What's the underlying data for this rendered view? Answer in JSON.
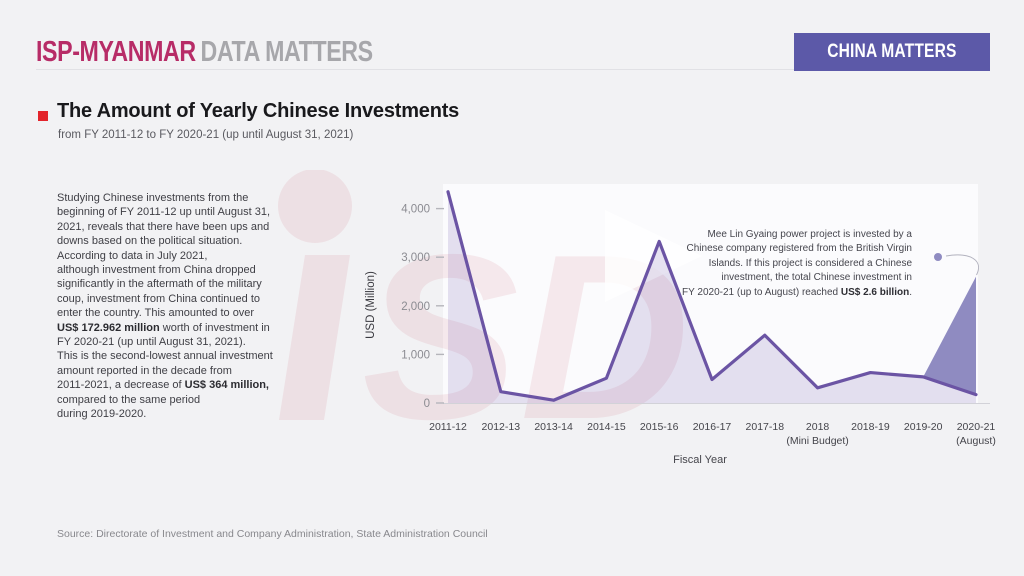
{
  "header": {
    "logo_primary": "ISP-MYANMAR",
    "logo_secondary": "DATA MATTERS",
    "badge": "CHINA MATTERS",
    "brand_color": "#b72c67",
    "badge_color": "#5c59a8"
  },
  "title_block": {
    "bullet_color": "#e3242b",
    "title": "The Amount of Yearly Chinese Investments",
    "subtitle": "from FY 2011-12 to FY 2020-21 (up until August 31, 2021)"
  },
  "body_paragraph": {
    "lines": [
      [
        {
          "t": "Studying Chinese investments from the"
        }
      ],
      [
        {
          "t": "beginning of FY 2011-12 up until August 31,"
        }
      ],
      [
        {
          "t": "2021, reveals that there have been ups and"
        }
      ],
      [
        {
          "t": "downs based on the political situation."
        }
      ],
      [
        {
          "t": "According to data in July 2021,"
        }
      ],
      [
        {
          "t": "although investment from China dropped"
        }
      ],
      [
        {
          "t": "significantly in the aftermath of the military"
        }
      ],
      [
        {
          "t": "coup, investment from China continued to"
        }
      ],
      [
        {
          "t": "enter the country. This amounted to over"
        }
      ],
      [
        {
          "t": "US$ 172.962 million",
          "b": true
        },
        {
          "t": " worth of investment in"
        }
      ],
      [
        {
          "t": "FY 2020-21 (up until August 31, 2021)."
        }
      ],
      [
        {
          "t": "This is the second-lowest annual investment"
        }
      ],
      [
        {
          "t": "amount reported in the decade from"
        }
      ],
      [
        {
          "t": "2011-2021, a decrease of "
        },
        {
          "t": "US$ 364 million,",
          "b": true
        }
      ],
      [
        {
          "t": "compared to the same period"
        }
      ],
      [
        {
          "t": "during 2019-2020."
        }
      ]
    ]
  },
  "chart_data": {
    "type": "area",
    "title": "",
    "xlabel": "Fiscal Year",
    "ylabel": "USD (Million)",
    "categories": [
      [
        "2011-12"
      ],
      [
        "2012-13"
      ],
      [
        "2013-14"
      ],
      [
        "2014-15"
      ],
      [
        "2015-16"
      ],
      [
        "2016-17"
      ],
      [
        "2017-18"
      ],
      [
        "2018",
        "(Mini Budget)"
      ],
      [
        "2018-19"
      ],
      [
        "2019-20"
      ],
      [
        "2020-21",
        "(August)"
      ]
    ],
    "values": [
      4346,
      232,
      57,
      511,
      3324,
      483,
      1395,
      312,
      626,
      537,
      173
    ],
    "ylim": [
      0,
      4500
    ],
    "y_ticks": [
      0,
      1000,
      2000,
      3000,
      4000
    ],
    "y_tick_labels": [
      "0",
      "1,000",
      "2,000",
      "3,000",
      "4,000"
    ],
    "grid": false,
    "legend": "none",
    "colors": {
      "line": "#6b54a4",
      "area": "rgba(105,82,165,0.16)",
      "highlight": "#8f8bc1",
      "axis": "#d2d2d8",
      "tick": "#b5b5bb",
      "tick_text": "#8b8b91",
      "label_text": "#45454b",
      "axis_title": "#3a3a40"
    },
    "annotation": {
      "lines": [
        [
          {
            "t": "Mee Lin Gyaing power project is invested by a"
          }
        ],
        [
          {
            "t": "Chinese company registered from the British Virgin"
          }
        ],
        [
          {
            "t": "Islands. If this project is considered a Chinese"
          }
        ],
        [
          {
            "t": "investment, the total Chinese investment in"
          }
        ],
        [
          {
            "t": "FY 2020-21 (up to August) reached "
          },
          {
            "t": "US$ 2.6 billion",
            "b": true
          },
          {
            "t": "."
          }
        ]
      ],
      "reached_total_musd": 2600,
      "marker_color": "#8f8bc1"
    }
  },
  "watermark": {
    "text": "iSP",
    "color": "rgba(200,70,85,0.10)"
  },
  "source": "Source: Directorate of Investment and Company Administration, State Administration Council"
}
